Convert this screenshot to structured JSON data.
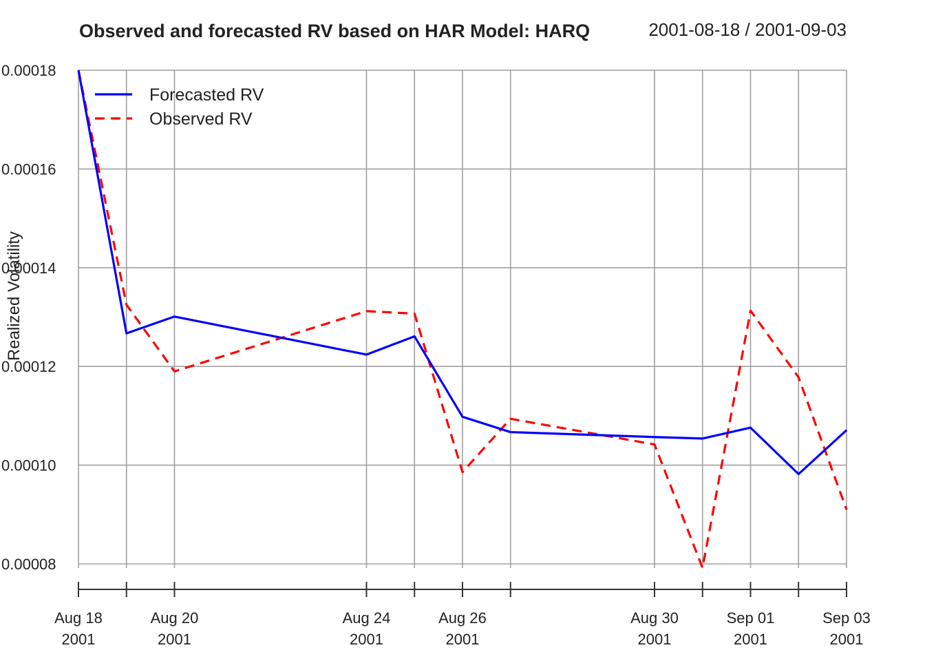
{
  "chart_data": {
    "type": "line",
    "title": "Observed and forecasted RV based on HAR Model: HARQ",
    "date_range": "2001-08-18 / 2001-09-03",
    "xlabel": "",
    "ylabel": "Realized Volatility",
    "ylim": [
      8e-05,
      0.00018
    ],
    "y_ticks": [
      "0.00008",
      "0.00010",
      "0.00012",
      "0.00014",
      "0.00016",
      "0.00018"
    ],
    "x": [
      "2001-08-18",
      "2001-08-19",
      "2001-08-20",
      "2001-08-24",
      "2001-08-25",
      "2001-08-26",
      "2001-08-27",
      "2001-08-30",
      "2001-08-31",
      "2001-09-01",
      "2001-09-02",
      "2001-09-03"
    ],
    "x_tick_labels": [
      {
        "date": "2001-08-18",
        "line1": "Aug 18",
        "line2": "2001"
      },
      {
        "date": "2001-08-20",
        "line1": "Aug 20",
        "line2": "2001"
      },
      {
        "date": "2001-08-24",
        "line1": "Aug 24",
        "line2": "2001"
      },
      {
        "date": "2001-08-26",
        "line1": "Aug 26",
        "line2": "2001"
      },
      {
        "date": "2001-08-30",
        "line1": "Aug 30",
        "line2": "2001"
      },
      {
        "date": "2001-09-01",
        "line1": "Sep 01",
        "line2": "2001"
      },
      {
        "date": "2001-09-03",
        "line1": "Sep 03",
        "line2": "2001"
      }
    ],
    "series": [
      {
        "name": "Forecasted RV",
        "color": "#0000ff",
        "dash": "solid",
        "values": [
          0.00018,
          0.0001267,
          0.0001301,
          0.0001224,
          0.0001261,
          0.0001098,
          0.0001067,
          0.0001057,
          0.0001054,
          0.0001076,
          9.82e-05,
          0.0001071
        ]
      },
      {
        "name": "Observed RV",
        "color": "#ff0000",
        "dash": "dashed",
        "values": [
          0.00018,
          0.0001325,
          0.000119,
          0.0001312,
          0.0001307,
          9.86e-05,
          0.0001094,
          0.0001042,
          7.92e-05,
          0.0001313,
          0.0001178,
          9.1e-05
        ]
      }
    ],
    "grid": true,
    "legend_position": "top-left"
  }
}
